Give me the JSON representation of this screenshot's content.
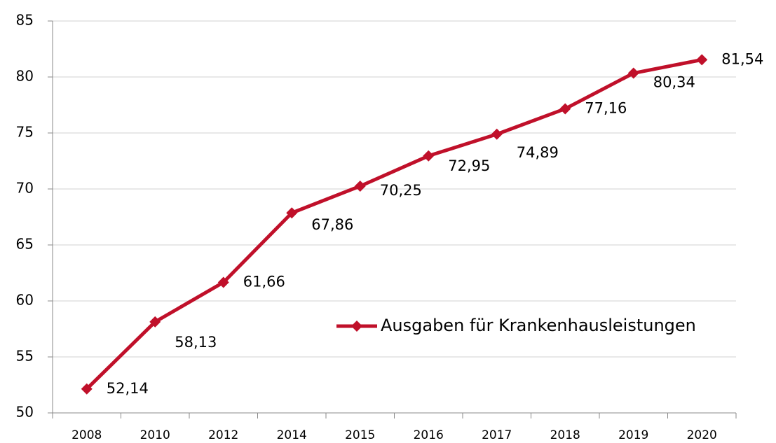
{
  "chart_data": {
    "type": "line",
    "categories": [
      "2008",
      "2010",
      "2012",
      "2014",
      "2015",
      "2016",
      "2017",
      "2018",
      "2019",
      "2020"
    ],
    "series": [
      {
        "name": "Ausgaben für Krankenhausleistungen",
        "color": "#c0102a",
        "values": [
          52.14,
          58.13,
          61.66,
          67.86,
          70.25,
          72.95,
          74.89,
          77.16,
          80.34,
          81.54
        ],
        "value_labels": [
          "52,14",
          "58,13",
          "61,66",
          "67,86",
          "70,25",
          "72,95",
          "74,89",
          "77,16",
          "80,34",
          "81,54"
        ]
      }
    ],
    "ylim": [
      50,
      85
    ],
    "yticks": [
      50,
      55,
      60,
      65,
      70,
      75,
      80,
      85
    ],
    "grid": true,
    "legend": "right"
  }
}
